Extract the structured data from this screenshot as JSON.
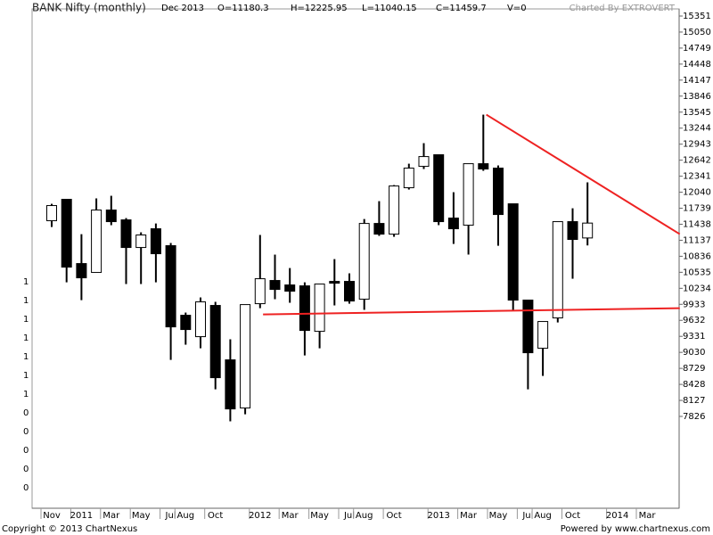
{
  "chart_data": {
    "type": "candlestick",
    "title": "BANK Nifty (monthly)",
    "period": "Dec 2013",
    "ohlc_header": [
      "O=11180.3",
      "H=12225.95",
      "L=11040.15",
      "C=11459.7",
      "V=0"
    ],
    "credit": "Charted By EXTROVERT",
    "copyright": "Copyright © 2013 ChartNexus",
    "powered_by": "Powered by www.chartnexus.com",
    "categories": [
      "Nov",
      null,
      "2011",
      null,
      "Mar",
      null,
      "May",
      null,
      "Jul",
      "Aug",
      null,
      "Oct",
      null,
      null,
      "2012",
      null,
      "Mar",
      null,
      "May",
      null,
      "Jul",
      "Aug",
      null,
      "Oct",
      null,
      null,
      "2013",
      null,
      "Mar",
      null,
      "May",
      null,
      "Jul",
      "Aug",
      null,
      "Oct",
      null,
      null,
      "2014",
      null,
      "Mar",
      null
    ],
    "open": [
      11504,
      11906,
      10699,
      10532,
      11705,
      11520,
      11001,
      11353,
      11035,
      9727,
      9325,
      9912,
      8889,
      7984,
      9945,
      10381,
      10297,
      10280,
      9425,
      10364,
      10364,
      10029,
      11453,
      11252,
      12124,
      12526,
      12744,
      11554,
      11420,
      12576,
      12493,
      11822,
      10012,
      9107,
      9677,
      11487,
      11180,
      null,
      null,
      null,
      null,
      null
    ],
    "high": [
      11822,
      11906,
      11252,
      11923,
      11973,
      11554,
      11286,
      11453,
      11085,
      9778,
      10062,
      9979,
      9275,
      9928,
      11236,
      10867,
      10615,
      10347,
      10314,
      10783,
      10515,
      11537,
      11872,
      12174,
      12576,
      12962,
      12744,
      12040,
      12576,
      13498,
      12543,
      11822,
      10012,
      9610,
      11487,
      11738,
      12226,
      null,
      null,
      null,
      null,
      null
    ],
    "low": [
      11386,
      10347,
      10012,
      10532,
      11420,
      10314,
      10314,
      10347,
      8889,
      9174,
      9107,
      8336,
      7733,
      7867,
      9861,
      10029,
      9962,
      8973,
      9107,
      9912,
      9945,
      9828,
      11219,
      11202,
      12090,
      12476,
      11420,
      11068,
      10867,
      12442,
      11034,
      9811,
      8336,
      8587,
      9593,
      10414,
      11040,
      null,
      null,
      null,
      null,
      null
    ],
    "close": [
      11789,
      10632,
      10431,
      11705,
      11487,
      11001,
      11236,
      10884,
      9509,
      9459,
      9979,
      8554,
      7967,
      9928,
      10414,
      10213,
      10180,
      9442,
      10314,
      10330,
      9995,
      11453,
      11252,
      12157,
      12493,
      12710,
      11487,
      11353,
      12576,
      12476,
      11621,
      10012,
      9023,
      9610,
      11487,
      11152,
      11460,
      null,
      null,
      null,
      null,
      null
    ],
    "up_color": "#ffffff",
    "down_color": "#000000",
    "trendlines": [
      {
        "color": "#ee2222",
        "x": [
          29.2,
          42.2
        ],
        "values": [
          13498,
          11252
        ]
      },
      {
        "color": "#ee2222",
        "x": [
          14.2,
          42.2
        ],
        "values": [
          9744,
          9861
        ]
      }
    ],
    "ylim": [
      6100,
      15485
    ],
    "yticks": [
      7826,
      8127,
      8428,
      8729,
      9030,
      9331,
      9632,
      9933,
      10234,
      10535,
      10836,
      11137,
      11438,
      11739,
      12040,
      12341,
      12642,
      12943,
      13244,
      13545,
      13846,
      14147,
      14448,
      14749,
      15050,
      15351
    ],
    "left_axis_labels": [
      "1",
      "1",
      "1",
      "1",
      "1",
      "1",
      "1",
      "0",
      "0",
      "0",
      "0",
      "0"
    ],
    "grid": false
  }
}
